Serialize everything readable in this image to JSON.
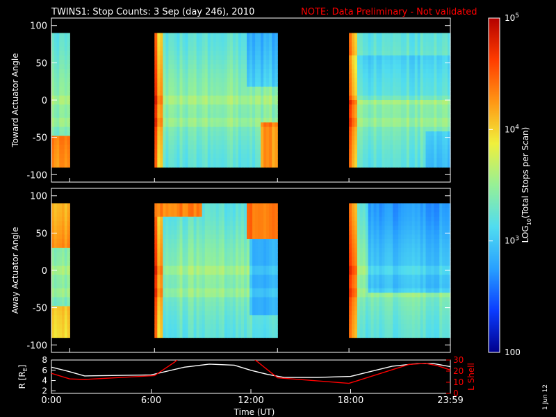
{
  "title": "TWINS1: Stop Counts:  3 Sep (day 246), 2010",
  "note": "NOTE: Data Preliminary - Not validated",
  "stamp": "1 Jun 12",
  "colors": {
    "background": "#000000",
    "axes": "#ffffff",
    "note": "#ff0000",
    "ephemeris_R": "#ffffff",
    "ephemeris_L": "#ff0000"
  },
  "colorbar": {
    "label": "LOG10(Total Stops per Scan)",
    "ticks": [
      "100",
      "10^3",
      "10^4",
      "10^5"
    ],
    "scale": "log",
    "range": [
      100,
      100000
    ],
    "colormap": [
      "#00008c",
      "#0a3cff",
      "#28a0ff",
      "#50dcf0",
      "#96f096",
      "#f0f03c",
      "#ff9614",
      "#ff3c00",
      "#b40000"
    ]
  },
  "chart_data": [
    {
      "type": "heatmap",
      "ylabel": "Toward Actuator Angle",
      "ylim": [
        -110,
        110
      ],
      "yticks": [
        "100",
        "50",
        "0",
        "-50",
        "-100"
      ],
      "xlim_hours": [
        0,
        24
      ],
      "coverage_hours": [
        [
          0,
          1.1
        ],
        [
          6.2,
          13.6
        ],
        [
          17.9,
          24
        ]
      ],
      "angle_range_deg": [
        -90,
        90
      ],
      "log_count_range": [
        2.8,
        5
      ]
    },
    {
      "type": "heatmap",
      "ylabel": "Away Actuator Angle",
      "ylim": [
        -110,
        110
      ],
      "yticks": [
        "100",
        "50",
        "0",
        "-50",
        "-100"
      ],
      "xlim_hours": [
        0,
        24
      ],
      "coverage_hours": [
        [
          0,
          1.1
        ],
        [
          6.2,
          13.6
        ],
        [
          17.9,
          24
        ]
      ],
      "angle_range_deg": [
        -90,
        90
      ],
      "log_count_range": [
        2.4,
        5
      ]
    },
    {
      "type": "line",
      "ylabel": "R [RE]",
      "y2label": "L Shell",
      "xlabel": "Time (UT)",
      "xticks": [
        "0:00",
        "6:00",
        "12:00",
        "18:00",
        "23:59"
      ],
      "xtick_hours": [
        0,
        6,
        12,
        18,
        24
      ],
      "yticks": [
        "2",
        "4",
        "6",
        "8"
      ],
      "ylim": [
        1.5,
        8
      ],
      "y2ticks": [
        "0",
        "10",
        "20",
        "30"
      ],
      "y2lim": [
        0,
        30
      ],
      "series": [
        {
          "name": "R [RE]",
          "axis": "left",
          "color": "#ffffff",
          "x": [
            0,
            1,
            2,
            4,
            6,
            8,
            9.5,
            11,
            12,
            13,
            14,
            16,
            18,
            19,
            20.5,
            22,
            23,
            24
          ],
          "y": [
            6.6,
            5.8,
            4.9,
            5.0,
            5.1,
            6.6,
            7.2,
            7.0,
            6.0,
            5.2,
            4.6,
            4.6,
            4.8,
            5.6,
            6.8,
            7.3,
            7.3,
            6.7
          ]
        },
        {
          "name": "L Shell",
          "axis": "right",
          "color": "#ff0000",
          "x": [
            0,
            1.1,
            2,
            6.2,
            7.4,
            7.7,
            12.1,
            13.6,
            17.9,
            21.5,
            22.5,
            23.2,
            24
          ],
          "y": [
            18,
            13,
            12.5,
            16,
            28,
            32,
            32,
            14,
            9,
            26,
            27,
            25,
            21
          ]
        }
      ]
    }
  ]
}
